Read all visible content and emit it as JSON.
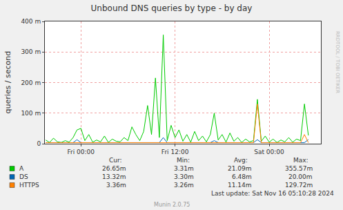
{
  "chart_data": {
    "type": "line",
    "title": "Unbound DNS queries by type - by day",
    "y_label": "queries / second",
    "x": [
      -4.5,
      -4,
      -3.5,
      -3,
      -2.5,
      -2,
      -1.5,
      -1,
      -0.5,
      0,
      0.5,
      1,
      1.5,
      2,
      2.5,
      3,
      3.5,
      4,
      4.5,
      5,
      5.5,
      6,
      6.5,
      7,
      7.5,
      8,
      8.5,
      9,
      9.5,
      10,
      10.5,
      11,
      11.5,
      12,
      12.5,
      13,
      13.5,
      14,
      14.5,
      15,
      15.5,
      16,
      16.5,
      17,
      17.5,
      18,
      18.5,
      19,
      19.5,
      20,
      20.5,
      21,
      21.5,
      22,
      22.5,
      23,
      23.5,
      24,
      24.5,
      25,
      25.5,
      26,
      26.5,
      27,
      27.5,
      28,
      28.5,
      29
    ],
    "xlim": [
      -4.6,
      30.6
    ],
    "xticks": [
      {
        "value": 0,
        "label": "Fri 00:00"
      },
      {
        "value": 12,
        "label": "Fri 12:00"
      },
      {
        "value": 24,
        "label": "Sat 00:00"
      }
    ],
    "ylim": [
      0,
      0.4
    ],
    "yticks": [
      0,
      {
        "value": 0.1,
        "label": "100 m"
      },
      {
        "value": 0.2,
        "label": "200 m"
      },
      {
        "value": 0.3,
        "label": "300 m"
      },
      {
        "value": 0.4,
        "label": "400 m"
      }
    ],
    "grid": true,
    "stat_headers": [
      "Cur:",
      "Min:",
      "Avg:",
      "Max:"
    ],
    "series": [
      {
        "name": "A",
        "color": "#00cc00",
        "values": [
          0.012,
          0.004,
          0.018,
          0.006,
          0.004,
          0.01,
          0.005,
          0.02,
          0.045,
          0.05,
          0.01,
          0.03,
          0.005,
          0.012,
          0.006,
          0.025,
          0.004,
          0.015,
          0.008,
          0.006,
          0.02,
          0.01,
          0.055,
          0.03,
          0.01,
          0.04,
          0.125,
          0.03,
          0.215,
          0.02,
          0.356,
          0.01,
          0.06,
          0.02,
          0.045,
          0.008,
          0.03,
          0.005,
          0.04,
          0.01,
          0.025,
          0.006,
          0.03,
          0.1,
          0.012,
          0.03,
          0.005,
          0.035,
          0.008,
          0.02,
          0.004,
          0.015,
          0.006,
          0.01,
          0.145,
          0.008,
          0.025,
          0.005,
          0.015,
          0.004,
          0.012,
          0.006,
          0.02,
          0.005,
          0.015,
          0.01,
          0.13,
          0.027
        ],
        "stats": [
          "26.65m",
          "3.31m",
          "21.09m",
          "355.57m"
        ]
      },
      {
        "name": "DS",
        "color": "#0066b3",
        "values": [
          0.0035,
          0.0035,
          0.0035,
          0.0035,
          0.0035,
          0.0035,
          0.0035,
          0.0035,
          0.013,
          0.0035,
          0.0035,
          0.0035,
          0.0035,
          0.0035,
          0.0035,
          0.0035,
          0.0035,
          0.0035,
          0.0035,
          0.0035,
          0.0035,
          0.0035,
          0.0035,
          0.0035,
          0.0035,
          0.0035,
          0.0035,
          0.0035,
          0.0035,
          0.0035,
          0.02,
          0.0035,
          0.0035,
          0.0035,
          0.0035,
          0.0035,
          0.0035,
          0.0035,
          0.0035,
          0.0035,
          0.0035,
          0.0035,
          0.0035,
          0.01,
          0.0035,
          0.0035,
          0.0035,
          0.0035,
          0.0035,
          0.0035,
          0.0035,
          0.0035,
          0.0035,
          0.0035,
          0.013,
          0.0035,
          0.0035,
          0.0035,
          0.0035,
          0.0035,
          0.0035,
          0.0035,
          0.0035,
          0.0035,
          0.0035,
          0.0035,
          0.0035,
          0.0133
        ],
        "stats": [
          "13.32m",
          "3.30m",
          "6.48m",
          "20.00m"
        ]
      },
      {
        "name": "HTTPS",
        "color": "#ff8000",
        "values": [
          0.0033,
          0.0033,
          0.0033,
          0.0033,
          0.0033,
          0.0033,
          0.0033,
          0.0033,
          0.0033,
          0.0033,
          0.0033,
          0.0033,
          0.0033,
          0.0033,
          0.0033,
          0.0033,
          0.0033,
          0.0033,
          0.0033,
          0.0033,
          0.0033,
          0.0033,
          0.0033,
          0.0033,
          0.0033,
          0.0033,
          0.0033,
          0.0033,
          0.0033,
          0.0033,
          0.0033,
          0.0033,
          0.0033,
          0.0033,
          0.0033,
          0.0033,
          0.0033,
          0.0033,
          0.0033,
          0.0033,
          0.0033,
          0.0033,
          0.0033,
          0.0033,
          0.0033,
          0.0033,
          0.0033,
          0.0033,
          0.0033,
          0.0033,
          0.0033,
          0.0033,
          0.0033,
          0.0033,
          0.1297,
          0.0033,
          0.0033,
          0.0033,
          0.0033,
          0.0033,
          0.0033,
          0.0033,
          0.0033,
          0.0033,
          0.0033,
          0.0033,
          0.03,
          0.0034
        ],
        "stats": [
          "3.36m",
          "3.26m",
          "11.14m",
          "129.72m"
        ]
      }
    ],
    "footer": "Last update: Sat Nov 16 05:10:28 2024",
    "credit": "Munin 2.0.75",
    "side_label": "RRDTOOL / TOBI OETIKER"
  }
}
